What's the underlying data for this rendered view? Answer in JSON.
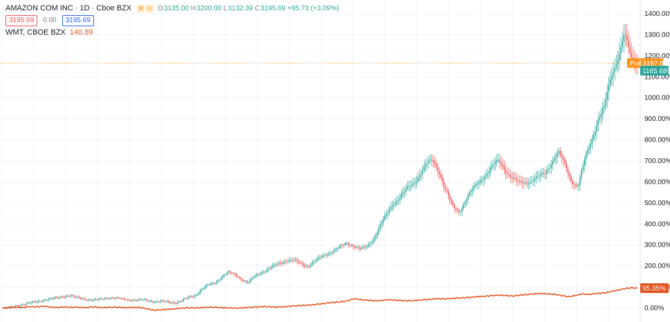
{
  "header": {
    "symbol_title": "AMAZON COM INC · 1D · Cboe BZX",
    "icons": [
      "sun-icon",
      "wave-icon"
    ],
    "ohlc": {
      "open_label": "O",
      "open": "3135.00",
      "high_label": "H",
      "high": "3200.00",
      "low_label": "L",
      "low": "3132.39",
      "close_label": "C",
      "close": "3195.69",
      "change": "+95.73 (+3.09%)"
    },
    "bid": "3195.69",
    "spread": "0.00",
    "ask": "3195.69",
    "compare_symbol": "WMT, CBOE BZX",
    "compare_value": "140.89"
  },
  "price_axis": {
    "labels": [
      "1400.00%",
      "1300.00%",
      "1200.00%",
      "1100.00%",
      "1000.00%",
      "900.00%",
      "800.00%",
      "700.00%",
      "600.00%",
      "500.00%",
      "400.00%",
      "300.00%",
      "200.00%",
      "100.00%",
      "0.00%"
    ],
    "badges": {
      "pre_label": "Pre",
      "pre_value": "3197.00",
      "amzn_pct": "1165.68%",
      "wmt_pct": "95.35%"
    }
  },
  "colors": {
    "up": "#26a69a",
    "down": "#ef5350",
    "wmt_line": "#e2531f",
    "pre_badge": "#f7931a",
    "grid": "#f0f3fa"
  },
  "chart_data": {
    "type": "line",
    "y_unit": "%",
    "ylim": [
      0,
      1400
    ],
    "grid": true,
    "series": [
      {
        "name": "AMAZON COM INC",
        "style": "candlestick",
        "values": [
          0,
          5,
          12,
          18,
          25,
          30,
          38,
          42,
          48,
          55,
          60,
          50,
          45,
          40,
          38,
          45,
          50,
          48,
          44,
          40,
          38,
          40,
          35,
          30,
          32,
          28,
          25,
          35,
          50,
          60,
          90,
          110,
          120,
          150,
          170,
          160,
          140,
          120,
          150,
          170,
          185,
          200,
          215,
          230,
          225,
          210,
          200,
          220,
          240,
          260,
          275,
          290,
          310,
          300,
          280,
          290,
          330,
          390,
          440,
          500,
          530,
          560,
          590,
          640,
          680,
          700,
          650,
          560,
          480,
          460,
          520,
          560,
          600,
          640,
          670,
          700,
          660,
          620,
          590,
          600,
          610,
          620,
          640,
          700,
          740,
          680,
          610,
          580,
          700,
          800,
          900,
          950,
          1100,
          1200,
          1300,
          1180,
          1165
        ]
      },
      {
        "name": "WMT, CBOE BZX",
        "style": "line",
        "values": [
          0,
          2,
          4,
          3,
          8,
          6,
          10,
          5,
          3,
          6,
          4,
          5,
          2,
          6,
          4,
          3,
          5,
          4,
          2,
          4,
          3,
          -3,
          -10,
          -8,
          -5,
          -3,
          0,
          2,
          1,
          3,
          5,
          4,
          2,
          1,
          0,
          2,
          4,
          6,
          8,
          6,
          5,
          7,
          10,
          12,
          14,
          16,
          20,
          24,
          28,
          30,
          35,
          45,
          40,
          38,
          35,
          37,
          40,
          38,
          36,
          35,
          37,
          40,
          42,
          45,
          44,
          46,
          48,
          50,
          52,
          55,
          57,
          60,
          62,
          60,
          58,
          62,
          65,
          68,
          70,
          68,
          66,
          60,
          55,
          60,
          68,
          65,
          70,
          72,
          78,
          85,
          92,
          97,
          95
        ]
      }
    ]
  }
}
